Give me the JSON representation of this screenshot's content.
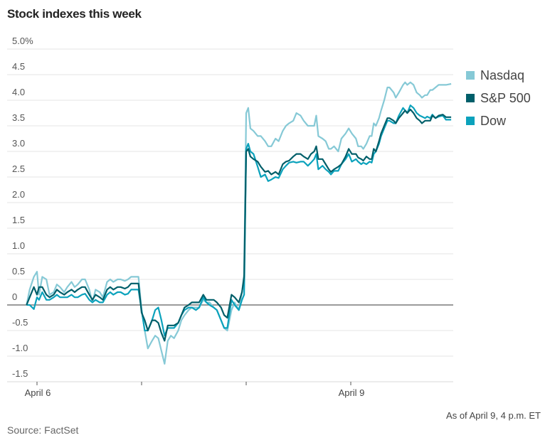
{
  "chart_data": {
    "type": "line",
    "title": "Stock indexes this week",
    "xlabel": "",
    "ylabel": "",
    "ylim": [
      -1.5,
      5.0
    ],
    "xlim": [
      -0.1,
      3.98
    ],
    "x_unit": "trading days since April 6 open",
    "yticks": [
      {
        "value": 5.0,
        "label": "5.0%"
      },
      {
        "value": 4.5,
        "label": "4.5"
      },
      {
        "value": 4.0,
        "label": "4.0"
      },
      {
        "value": 3.5,
        "label": "3.5"
      },
      {
        "value": 3.0,
        "label": "3.0"
      },
      {
        "value": 2.5,
        "label": "2.5"
      },
      {
        "value": 2.0,
        "label": "2.0"
      },
      {
        "value": 1.5,
        "label": "1.5"
      },
      {
        "value": 1.0,
        "label": "1.0"
      },
      {
        "value": 0.5,
        "label": "0.5"
      },
      {
        "value": 0,
        "label": "0"
      },
      {
        "value": -0.5,
        "label": "-0.5"
      },
      {
        "value": -1.0,
        "label": "-1.0"
      },
      {
        "value": -1.5,
        "label": "-1.5"
      }
    ],
    "xticks": [
      {
        "value": 0,
        "label": "April 6"
      },
      {
        "value": 1,
        "label": ""
      },
      {
        "value": 2,
        "label": ""
      },
      {
        "value": 3,
        "label": "April 9"
      }
    ],
    "grid": true,
    "legend_position": "right",
    "x": [
      -0.1,
      -0.07,
      -0.03,
      0,
      0.02,
      0.05,
      0.09,
      0.12,
      0.16,
      0.19,
      0.22,
      0.26,
      0.29,
      0.33,
      0.36,
      0.39,
      0.43,
      0.46,
      0.5,
      0.53,
      0.56,
      0.6,
      0.63,
      0.67,
      0.7,
      0.73,
      0.77,
      0.8,
      0.84,
      0.87,
      0.9,
      0.94,
      0.97,
      1.0,
      1.03,
      1.06,
      1.1,
      1.13,
      1.16,
      1.19,
      1.22,
      1.25,
      1.28,
      1.31,
      1.35,
      1.38,
      1.41,
      1.45,
      1.48,
      1.52,
      1.55,
      1.59,
      1.62,
      1.65,
      1.69,
      1.72,
      1.76,
      1.79,
      1.82,
      1.86,
      1.89,
      1.93,
      1.96,
      1.98,
      2.0,
      2.02,
      2.04,
      2.07,
      2.11,
      2.14,
      2.18,
      2.21,
      2.24,
      2.28,
      2.31,
      2.35,
      2.38,
      2.41,
      2.45,
      2.48,
      2.52,
      2.55,
      2.59,
      2.62,
      2.65,
      2.67,
      2.69,
      2.73,
      2.76,
      2.79,
      2.81,
      2.84,
      2.88,
      2.91,
      2.95,
      2.98,
      3.01,
      3.05,
      3.07,
      3.1,
      3.12,
      3.15,
      3.18,
      3.2,
      3.22,
      3.24,
      3.27,
      3.29,
      3.32,
      3.35,
      3.37,
      3.41,
      3.43,
      3.46,
      3.5,
      3.52,
      3.54,
      3.57,
      3.6,
      3.63,
      3.66,
      3.68,
      3.71,
      3.73,
      3.76,
      3.78,
      3.81,
      3.84,
      3.88,
      3.91,
      3.96
    ],
    "series": [
      {
        "name": "Nasdaq",
        "color": "#86c9d6",
        "values": [
          0,
          0.3,
          0.55,
          0.65,
          0.2,
          0.55,
          0.5,
          0.2,
          0.25,
          0.4,
          0.35,
          0.25,
          0.35,
          0.45,
          0.35,
          0.4,
          0.5,
          0.5,
          0.3,
          0.05,
          0.3,
          0.25,
          0.15,
          0.45,
          0.5,
          0.45,
          0.5,
          0.5,
          0.47,
          0.5,
          0.55,
          0.55,
          0.55,
          -0.1,
          -0.5,
          -0.85,
          -0.7,
          -0.6,
          -0.65,
          -0.9,
          -1.15,
          -0.7,
          -0.6,
          -0.65,
          -0.5,
          -0.3,
          -0.2,
          -0.1,
          -0.05,
          -0.05,
          -0.05,
          0.1,
          0.05,
          0.05,
          -0.05,
          -0.1,
          -0.3,
          -0.45,
          -0.5,
          -0.1,
          0.05,
          -0.1,
          0.25,
          0.6,
          3.75,
          3.85,
          3.45,
          3.4,
          3.3,
          3.3,
          3.2,
          3.1,
          3.1,
          3.25,
          3.2,
          3.4,
          3.5,
          3.55,
          3.6,
          3.75,
          3.7,
          3.6,
          3.5,
          3.5,
          3.5,
          3.7,
          3.3,
          3.25,
          3.2,
          3.05,
          3.05,
          3.1,
          3.0,
          3.25,
          3.35,
          3.45,
          3.35,
          3.25,
          3.1,
          3.1,
          3.05,
          3.15,
          3.3,
          3.3,
          3.55,
          3.5,
          3.65,
          3.8,
          4.0,
          4.25,
          4.25,
          4.15,
          4.05,
          4.15,
          4.3,
          4.35,
          4.3,
          4.35,
          4.3,
          4.15,
          4.1,
          4.05,
          4.1,
          4.1,
          4.2,
          4.2,
          4.25,
          4.3,
          4.3,
          4.3,
          4.32
        ]
      },
      {
        "name": "S&P 500",
        "color": "#005f6a",
        "values": [
          0,
          0.15,
          0.35,
          0.2,
          0.35,
          0.35,
          0.2,
          0.15,
          0.2,
          0.3,
          0.25,
          0.2,
          0.25,
          0.3,
          0.25,
          0.3,
          0.35,
          0.35,
          0.2,
          0.1,
          0.2,
          0.15,
          0.1,
          0.3,
          0.35,
          0.3,
          0.35,
          0.35,
          0.32,
          0.35,
          0.42,
          0.42,
          0.42,
          -0.15,
          -0.3,
          -0.5,
          -0.3,
          -0.3,
          -0.35,
          -0.55,
          -0.7,
          -0.4,
          -0.4,
          -0.4,
          -0.35,
          -0.2,
          -0.05,
          0.0,
          0.05,
          0.05,
          0.05,
          0.2,
          0.1,
          0.1,
          0.1,
          0.05,
          -0.05,
          -0.2,
          -0.25,
          0.2,
          0.15,
          0.05,
          0.25,
          0.55,
          3.0,
          3.05,
          2.9,
          2.85,
          2.8,
          2.7,
          2.6,
          2.62,
          2.55,
          2.6,
          2.55,
          2.75,
          2.8,
          2.82,
          2.9,
          2.95,
          2.95,
          2.9,
          2.85,
          2.95,
          3.0,
          3.1,
          2.85,
          2.85,
          2.75,
          2.65,
          2.6,
          2.65,
          2.7,
          2.75,
          2.9,
          3.05,
          2.95,
          2.95,
          2.88,
          2.85,
          2.82,
          2.9,
          2.85,
          2.85,
          3.05,
          3.0,
          3.2,
          3.35,
          3.5,
          3.65,
          3.65,
          3.6,
          3.55,
          3.65,
          3.75,
          3.8,
          3.75,
          3.82,
          3.75,
          3.65,
          3.6,
          3.55,
          3.6,
          3.6,
          3.6,
          3.7,
          3.65,
          3.7,
          3.72,
          3.67,
          3.67
        ]
      },
      {
        "name": "Dow",
        "color": "#0ba2bc",
        "values": [
          0,
          0.0,
          -0.08,
          0.15,
          0.1,
          0.25,
          0.1,
          0.1,
          0.15,
          0.2,
          0.15,
          0.15,
          0.15,
          0.2,
          0.15,
          0.15,
          0.2,
          0.22,
          0.1,
          0.05,
          0.1,
          0.05,
          0.05,
          0.2,
          0.25,
          0.2,
          0.25,
          0.25,
          0.2,
          0.22,
          0.3,
          0.3,
          0.3,
          -0.1,
          -0.5,
          -0.5,
          -0.3,
          -0.1,
          -0.05,
          -0.3,
          -0.6,
          -0.45,
          -0.45,
          -0.45,
          -0.35,
          -0.2,
          -0.1,
          -0.05,
          -0.05,
          -0.1,
          -0.05,
          0.15,
          0.05,
          0.0,
          -0.05,
          -0.1,
          -0.3,
          -0.45,
          -0.45,
          0.1,
          0.0,
          -0.1,
          0.1,
          0.2,
          3.05,
          3.15,
          3.0,
          2.95,
          2.7,
          2.5,
          2.55,
          2.42,
          2.45,
          2.5,
          2.48,
          2.65,
          2.72,
          2.78,
          2.8,
          2.78,
          2.8,
          2.8,
          2.72,
          2.78,
          2.85,
          2.95,
          2.65,
          2.72,
          2.65,
          2.6,
          2.55,
          2.62,
          2.62,
          2.75,
          2.85,
          2.95,
          2.8,
          2.85,
          2.8,
          2.75,
          2.78,
          2.75,
          2.8,
          2.78,
          2.95,
          3.0,
          3.15,
          3.3,
          3.45,
          3.6,
          3.6,
          3.55,
          3.55,
          3.7,
          3.85,
          3.8,
          3.75,
          3.9,
          3.85,
          3.75,
          3.7,
          3.68,
          3.65,
          3.68,
          3.65,
          3.72,
          3.65,
          3.68,
          3.7,
          3.62,
          3.62
        ]
      }
    ],
    "annotations": [
      "As of April 9, 4 p.m. ET"
    ],
    "source": "Source: FactSet"
  }
}
